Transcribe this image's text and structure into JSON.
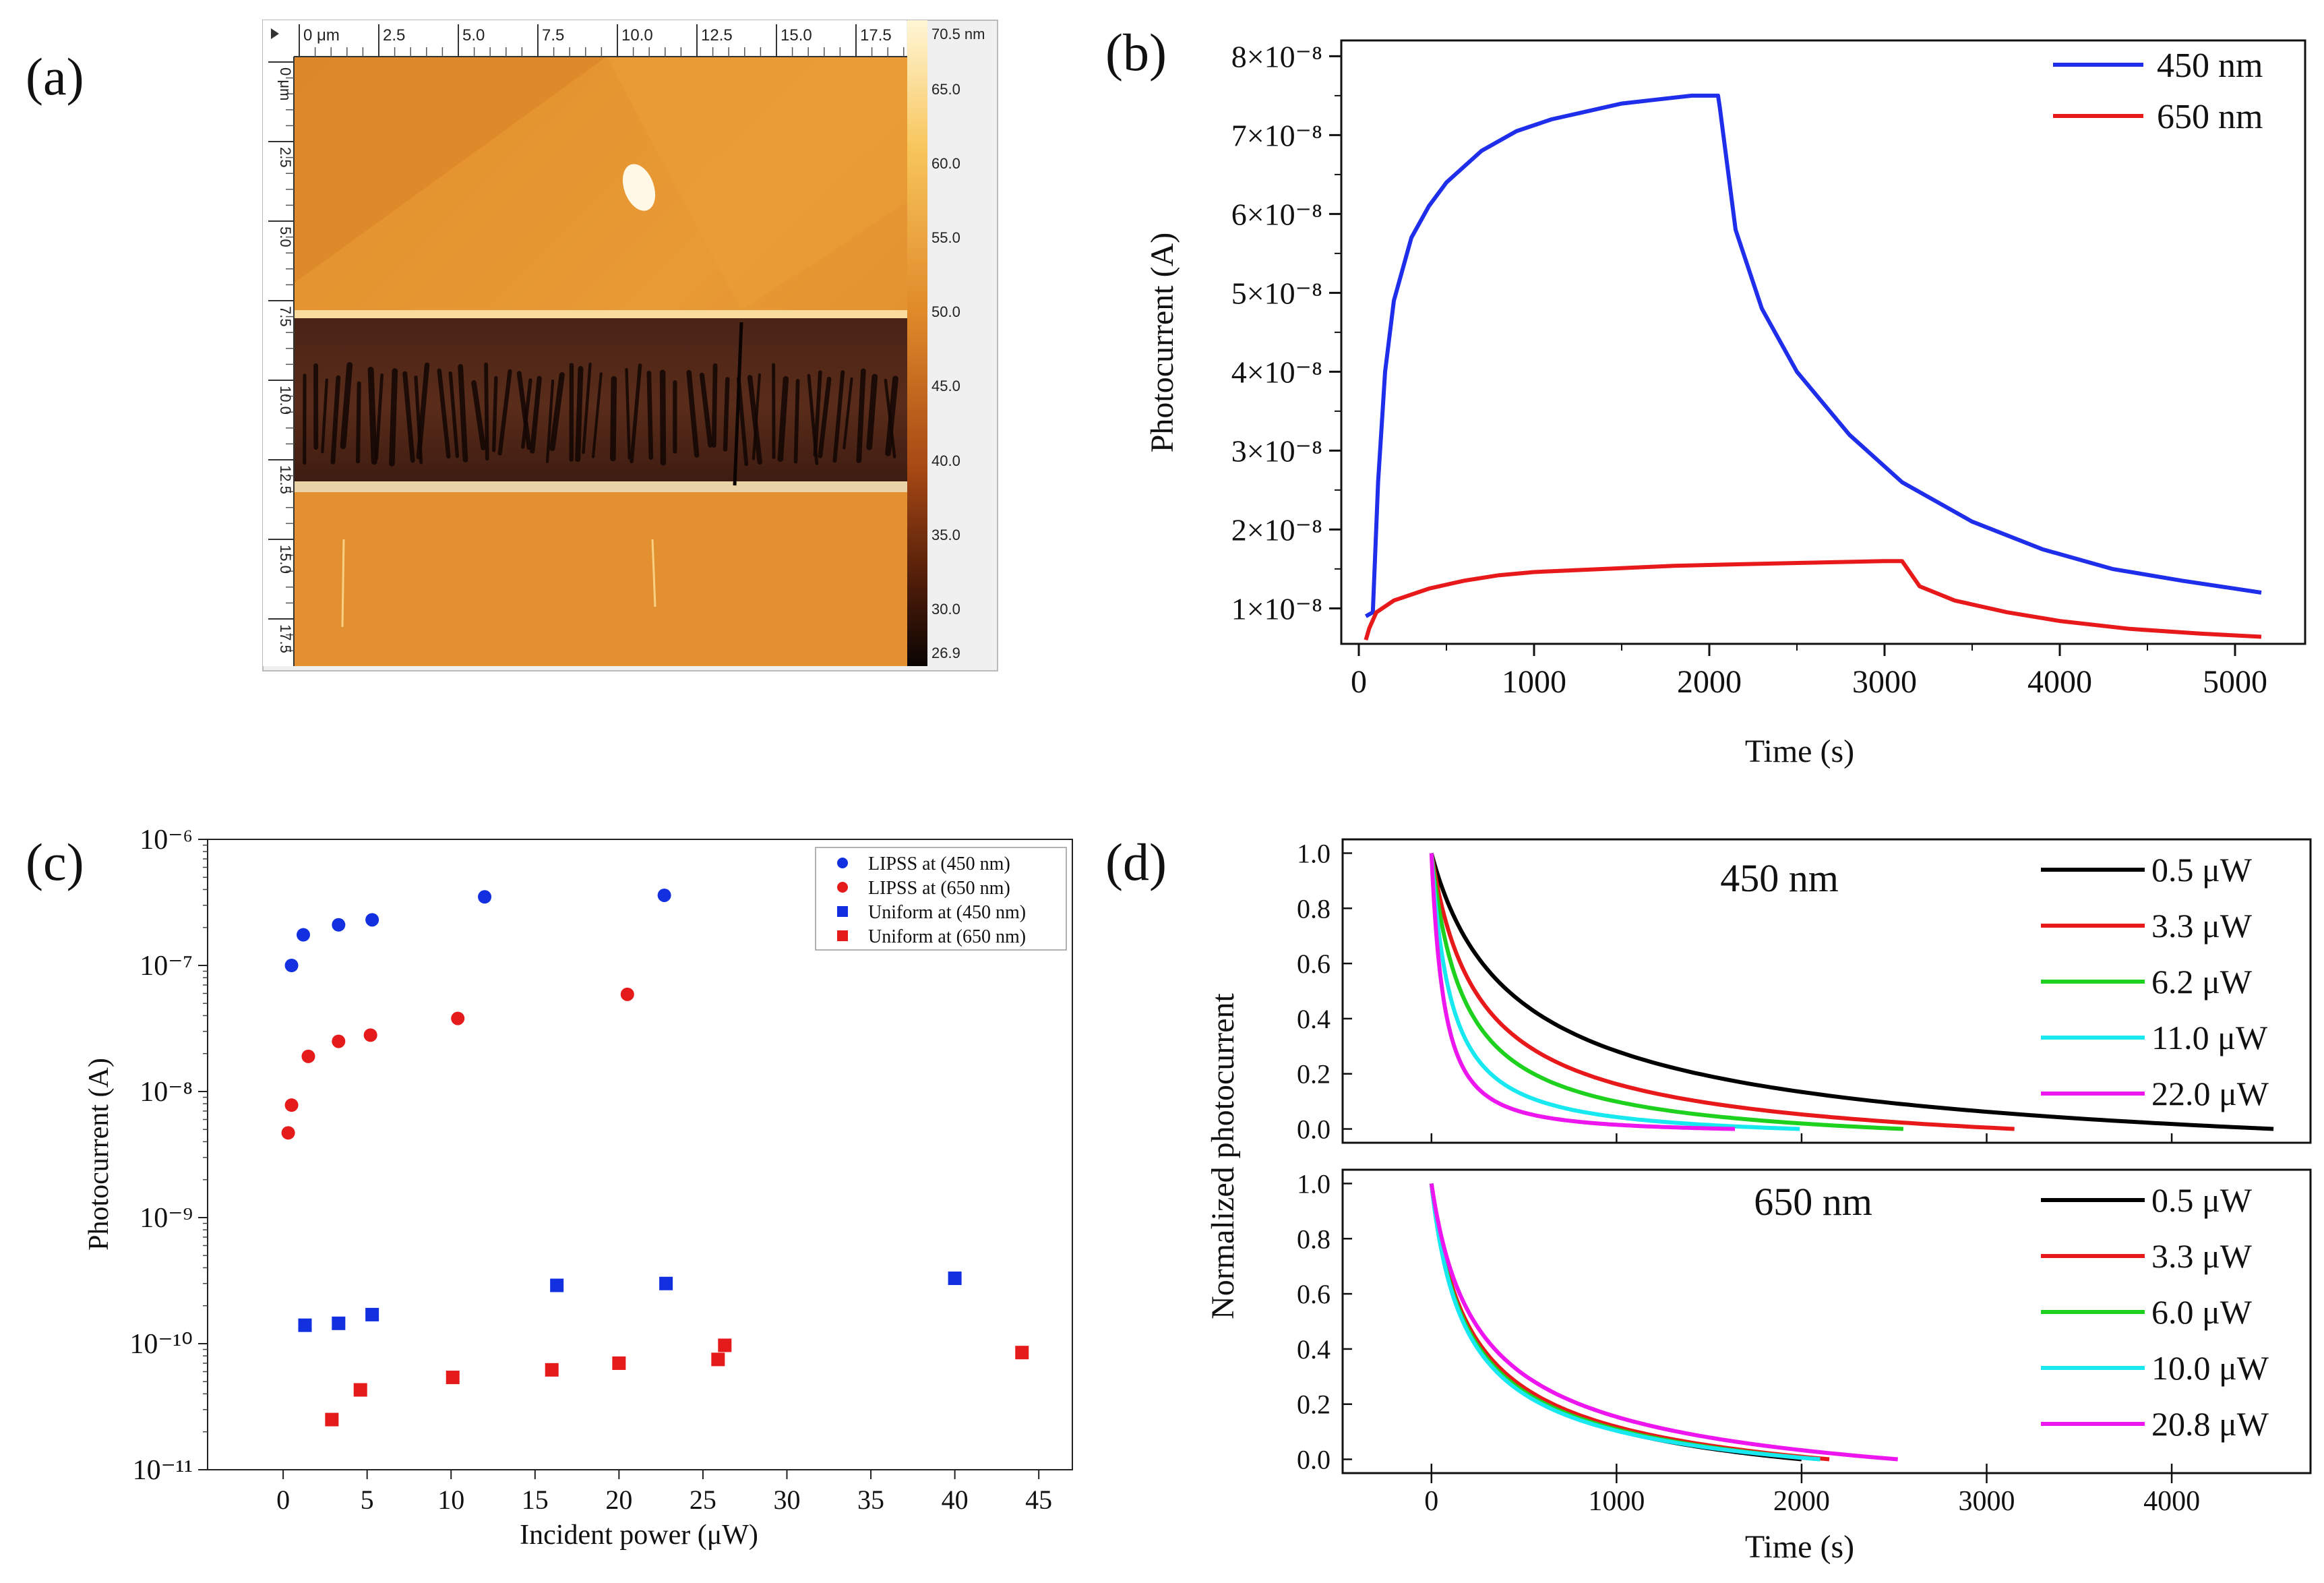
{
  "panels": {
    "a": {
      "label": "(a)",
      "x_ticks": [
        "0 μm",
        "2.5",
        "5.0",
        "7.5",
        "10.0",
        "12.5",
        "15.0",
        "17.5"
      ],
      "y_ticks": [
        "0 μm",
        "2.5",
        "5.0",
        "7.5",
        "10.0",
        "12.5",
        "15.0",
        "17.5"
      ],
      "scale_ticks": [
        "70.5 nm",
        "65.0",
        "60.0",
        "55.0",
        "50.0",
        "45.0",
        "40.0",
        "35.0",
        "30.0",
        "26.9"
      ],
      "colors": {
        "dark": "#1a0a05",
        "mid": "#c7611a",
        "light": "#f2b24a",
        "high": "#fff6d6"
      }
    },
    "b": {
      "label": "(b)"
    },
    "c": {
      "label": "(c)"
    },
    "d": {
      "label": "(d)",
      "top_title": "450 nm",
      "bottom_title": "650 nm"
    }
  },
  "chart_data": [
    {
      "id": "b",
      "type": "line",
      "xlabel": "Time (s)",
      "ylabel": "Photocurrent (A)",
      "xlim": [
        -100,
        5400
      ],
      "ylim": [
        5.5e-09,
        8.2e-08
      ],
      "x_ticks": [
        0,
        1000,
        2000,
        3000,
        4000,
        5000
      ],
      "y_ticks": [
        "1×10⁻⁸",
        "2×10⁻⁸",
        "3×10⁻⁸",
        "4×10⁻⁸",
        "5×10⁻⁸",
        "6×10⁻⁸",
        "7×10⁻⁸",
        "8×10⁻⁸"
      ],
      "y_tick_values": [
        1e-08,
        2e-08,
        3e-08,
        4e-08,
        5e-08,
        6e-08,
        7e-08,
        8e-08
      ],
      "legend_position": "top-right",
      "series": [
        {
          "name": "450 nm",
          "color": "#1f2eea",
          "x": [
            40,
            80,
            90,
            110,
            150,
            200,
            300,
            400,
            500,
            700,
            900,
            1100,
            1300,
            1500,
            1700,
            1900,
            2050,
            2060,
            2150,
            2300,
            2500,
            2800,
            3100,
            3500,
            3900,
            4300,
            4700,
            5150
          ],
          "y": [
            9e-09,
            9.5e-09,
            1.5e-08,
            2.6e-08,
            4e-08,
            4.9e-08,
            5.7e-08,
            6.1e-08,
            6.4e-08,
            6.8e-08,
            7.05e-08,
            7.2e-08,
            7.3e-08,
            7.4e-08,
            7.45e-08,
            7.5e-08,
            7.5e-08,
            7.35e-08,
            5.8e-08,
            4.8e-08,
            4e-08,
            3.2e-08,
            2.6e-08,
            2.1e-08,
            1.75e-08,
            1.5e-08,
            1.35e-08,
            1.2e-08
          ]
        },
        {
          "name": "650 nm",
          "color": "#e8191b",
          "x": [
            40,
            60,
            100,
            200,
            400,
            600,
            800,
            1000,
            1400,
            1800,
            2200,
            2600,
            3000,
            3100,
            3200,
            3400,
            3700,
            4000,
            4400,
            4800,
            5150
          ],
          "y": [
            6e-09,
            7.5e-09,
            9.5e-09,
            1.1e-08,
            1.25e-08,
            1.35e-08,
            1.42e-08,
            1.46e-08,
            1.5e-08,
            1.54e-08,
            1.56e-08,
            1.58e-08,
            1.6e-08,
            1.6e-08,
            1.28e-08,
            1.1e-08,
            9.5e-09,
            8.4e-09,
            7.4e-09,
            6.8e-09,
            6.4e-09
          ]
        }
      ]
    },
    {
      "id": "c",
      "type": "scatter",
      "xlabel": "Incident power (μW)",
      "ylabel": "Photocurrent (A)",
      "xlim": [
        -4.5,
        47
      ],
      "ylim_log10": [
        -11,
        -6
      ],
      "x_ticks": [
        0,
        5,
        10,
        15,
        20,
        25,
        30,
        35,
        40,
        45
      ],
      "y_ticks": [
        "10⁻¹¹",
        "10⁻¹⁰",
        "10⁻⁹",
        "10⁻⁸",
        "10⁻⁷",
        "10⁻⁶"
      ],
      "y_tick_values": [
        1e-11,
        1e-10,
        1e-09,
        1e-08,
        1e-07,
        1e-06
      ],
      "legend_position": "top-right",
      "series": [
        {
          "name": "LIPSS at (450 nm)",
          "marker": "circle",
          "color": "#1230e0",
          "points": [
            [
              0.5,
              1e-07
            ],
            [
              1.2,
              1.75e-07
            ],
            [
              3.3,
              2.1e-07
            ],
            [
              5.3,
              2.3e-07
            ],
            [
              12.0,
              3.5e-07
            ],
            [
              22.7,
              3.6e-07
            ]
          ]
        },
        {
          "name": "LIPSS at (650 nm)",
          "marker": "circle",
          "color": "#e51a1a",
          "points": [
            [
              0.3,
              4.7e-09
            ],
            [
              0.5,
              7.8e-09
            ],
            [
              1.5,
              1.9e-08
            ],
            [
              3.3,
              2.5e-08
            ],
            [
              5.2,
              2.8e-08
            ],
            [
              10.4,
              3.8e-08
            ],
            [
              20.5,
              5.9e-08
            ]
          ]
        },
        {
          "name": "Uniform at (450 nm)",
          "marker": "square",
          "color": "#1230e0",
          "points": [
            [
              1.3,
              1.4e-10
            ],
            [
              3.3,
              1.45e-10
            ],
            [
              5.3,
              1.7e-10
            ],
            [
              16.3,
              2.9e-10
            ],
            [
              22.8,
              3e-10
            ],
            [
              40.0,
              3.3e-10
            ]
          ]
        },
        {
          "name": "Uniform at (650 nm)",
          "marker": "square",
          "color": "#e51a1a",
          "points": [
            [
              2.9,
              2.5e-11
            ],
            [
              4.6,
              4.3e-11
            ],
            [
              10.1,
              5.4e-11
            ],
            [
              16.0,
              6.2e-11
            ],
            [
              20.0,
              7e-11
            ],
            [
              25.9,
              7.5e-11
            ],
            [
              26.3,
              9.7e-11
            ],
            [
              44.0,
              8.5e-11
            ]
          ]
        }
      ]
    },
    {
      "id": "d",
      "type": "line",
      "xlabel": "Time (s)",
      "ylabel": "Normalized photocurrent",
      "xlim": [
        -480,
        4750
      ],
      "ylim": [
        -0.05,
        1.05
      ],
      "x_ticks": [
        0,
        1000,
        2000,
        3000,
        4000
      ],
      "y_ticks": [
        "0.0",
        "0.2",
        "0.4",
        "0.6",
        "0.8",
        "1.0"
      ],
      "y_tick_values": [
        0.0,
        0.2,
        0.4,
        0.6,
        0.8,
        1.0
      ],
      "legend_position": "right",
      "top": {
        "series": [
          {
            "name": "0.5 μW",
            "color": "#000000",
            "tend": 4550,
            "k": 0.17
          },
          {
            "name": "3.3 μW",
            "color": "#e8191b",
            "tend": 3150,
            "k": 0.22
          },
          {
            "name": "6.2 μW",
            "color": "#1ed11e",
            "tend": 2550,
            "k": 0.27
          },
          {
            "name": "11.0 μW",
            "color": "#18e8f0",
            "tend": 1990,
            "k": 0.35
          },
          {
            "name": "22.0 μW",
            "color": "#ee16ee",
            "tend": 1640,
            "k": 0.45
          }
        ]
      },
      "bottom": {
        "series": [
          {
            "name": "0.5  μW",
            "color": "#000000",
            "tend": 2000,
            "k": 0.18
          },
          {
            "name": "3.3  μW",
            "color": "#e8191b",
            "tend": 2150,
            "k": 0.18
          },
          {
            "name": "6.0  μW",
            "color": "#1ed11e",
            "tend": 2100,
            "k": 0.19
          },
          {
            "name": "10.0 μW",
            "color": "#18e8f0",
            "tend": 2100,
            "k": 0.2
          },
          {
            "name": "20.8 μW",
            "color": "#ee16ee",
            "tend": 2520,
            "k": 0.17
          }
        ]
      }
    }
  ]
}
